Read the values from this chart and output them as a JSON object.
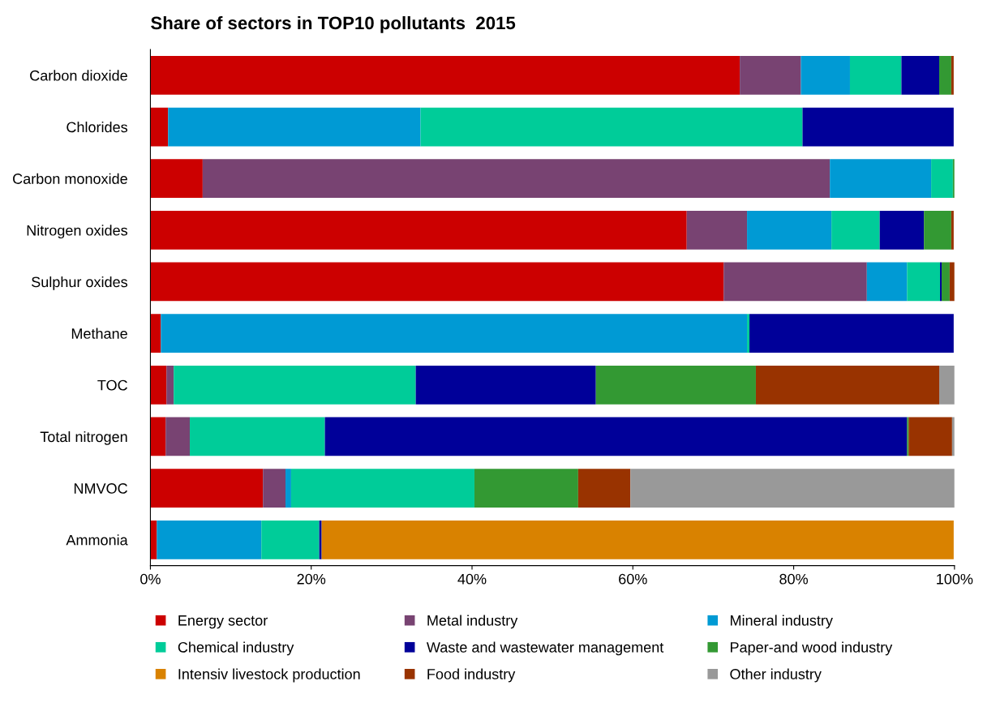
{
  "chart_data": {
    "type": "bar",
    "orientation": "horizontal",
    "stacked": true,
    "title": "Share of sectors in TOP10 pollutants  2015",
    "categories": [
      "Carbon dioxide",
      "Chlorides",
      "Carbon monoxide",
      "Nitrogen oxides",
      "Sulphur oxides",
      "Methane",
      "TOC",
      "Total nitrogen",
      "NMVOC",
      "Ammonia"
    ],
    "series": [
      {
        "name": "Energy sector",
        "color": "#cc0000",
        "values": [
          73.3,
          2.2,
          6.5,
          66.7,
          71.3,
          1.3,
          2.0,
          1.9,
          14.0,
          0.8
        ]
      },
      {
        "name": "Metal industry",
        "color": "#784372",
        "values": [
          7.6,
          0,
          78.0,
          7.5,
          17.8,
          0,
          0.9,
          3.0,
          2.8,
          0
        ]
      },
      {
        "name": "Mineral industry",
        "color": "#009ad4",
        "values": [
          6.1,
          31.4,
          12.6,
          10.5,
          5.0,
          72.9,
          0,
          0,
          0.7,
          13.0
        ]
      },
      {
        "name": "Chemical industry",
        "color": "#00cc99",
        "values": [
          6.4,
          47.5,
          2.7,
          6.0,
          4.1,
          0.3,
          30.1,
          16.8,
          22.8,
          7.2
        ]
      },
      {
        "name": "Waste and wastewater management",
        "color": "#000099",
        "values": [
          4.7,
          18.8,
          0,
          5.5,
          0.2,
          25.4,
          22.4,
          72.4,
          0,
          0.3
        ]
      },
      {
        "name": "Paper-and wood industry",
        "color": "#339933",
        "values": [
          1.5,
          0,
          0.2,
          3.4,
          1.0,
          0,
          19.9,
          0.2,
          12.9,
          0
        ]
      },
      {
        "name": "Intensiv livestock production",
        "color": "#d98200",
        "values": [
          0,
          0,
          0,
          0,
          0,
          null,
          0,
          0,
          0,
          78.6
        ]
      },
      {
        "name": "Food industry",
        "color": "#993300",
        "values": [
          0.3,
          null,
          0,
          0.3,
          0.6,
          0,
          22.8,
          5.4,
          6.5,
          null
        ]
      },
      {
        "name": "Other industry",
        "color": "#999999",
        "values": [
          null,
          0,
          0,
          null,
          0,
          0,
          1.9,
          0.3,
          40.3,
          0
        ]
      }
    ],
    "xlim": [
      0,
      100
    ],
    "xticks": [
      {
        "value": 0,
        "label": "0%"
      },
      {
        "value": 20,
        "label": "20%"
      },
      {
        "value": 40,
        "label": "40%"
      },
      {
        "value": 60,
        "label": "60%"
      },
      {
        "value": 80,
        "label": "80%"
      },
      {
        "value": 100,
        "label": "100%"
      }
    ],
    "legend": "bottom",
    "grid": false
  }
}
